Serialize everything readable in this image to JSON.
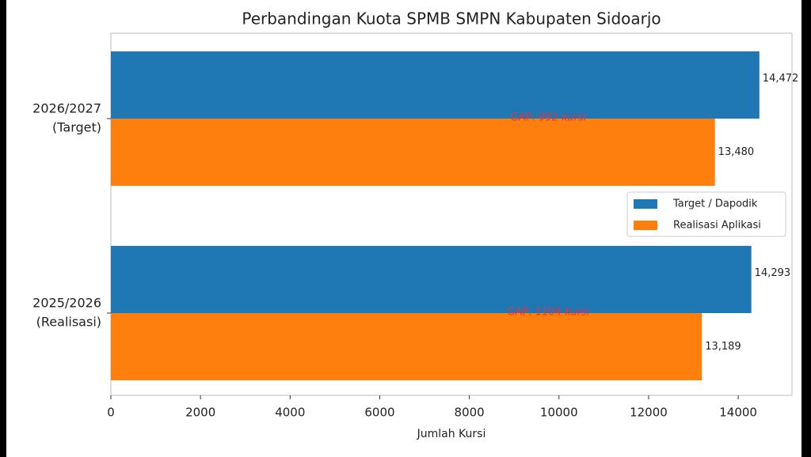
{
  "chart_data": {
    "type": "barh",
    "title": "Perbandingan Kuota SPMB SMPN Kabupaten Sidoarjo",
    "x_label": "Jumlah Kursi",
    "categories": [
      [
        "2026/2027",
        "(Target)"
      ],
      [
        "2025/2026",
        "(Realisasi)"
      ]
    ],
    "series": [
      {
        "name": "Target / Dapodik",
        "color": "#1f77b4",
        "values": [
          14472,
          14293
        ],
        "value_labels": [
          "14,472",
          "14,293"
        ]
      },
      {
        "name": "Realisasi Aplikasi",
        "color": "#ff7f0e",
        "values": [
          13480,
          13189
        ],
        "value_labels": [
          "13,480",
          "13,189"
        ]
      }
    ],
    "annotations": [
      "GAP: 992 kursi",
      "GAP: 1104 kursi"
    ],
    "xlim": [
      0,
      15200
    ],
    "xticks": [
      0,
      2000,
      4000,
      6000,
      8000,
      10000,
      12000,
      14000
    ],
    "legend": "right"
  }
}
